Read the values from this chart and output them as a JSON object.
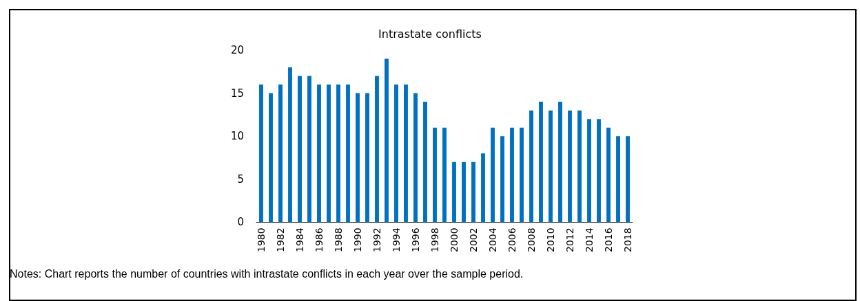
{
  "chart_data": {
    "type": "bar",
    "title": "Intrastate conflicts",
    "categories": [
      "1980",
      null,
      "1982",
      null,
      "1984",
      null,
      "1986",
      null,
      "1988",
      null,
      "1990",
      null,
      "1992",
      null,
      "1994",
      null,
      "1996",
      null,
      "1998",
      null,
      "2000",
      null,
      "2002",
      null,
      "2004",
      null,
      "2006",
      null,
      "2008",
      null,
      "2010",
      null,
      "2012",
      null,
      "2014",
      null,
      "2016",
      null,
      "2018"
    ],
    "values": [
      16,
      15,
      16,
      18,
      17,
      17,
      16,
      16,
      16,
      16,
      15,
      15,
      17,
      19,
      16,
      16,
      15,
      14,
      11,
      11,
      7,
      7,
      7,
      8,
      11,
      10,
      11,
      11,
      13,
      14,
      13,
      14,
      13,
      13,
      12,
      12,
      11,
      10,
      10
    ],
    "color": "#0070c0",
    "ylim": [
      0,
      20
    ],
    "yticks": [
      0,
      5,
      10,
      15,
      20
    ],
    "grid": false,
    "annotations": [
      "Notes: Chart reports the number of countries with intrastate conflicts in each year over the sample period."
    ]
  }
}
